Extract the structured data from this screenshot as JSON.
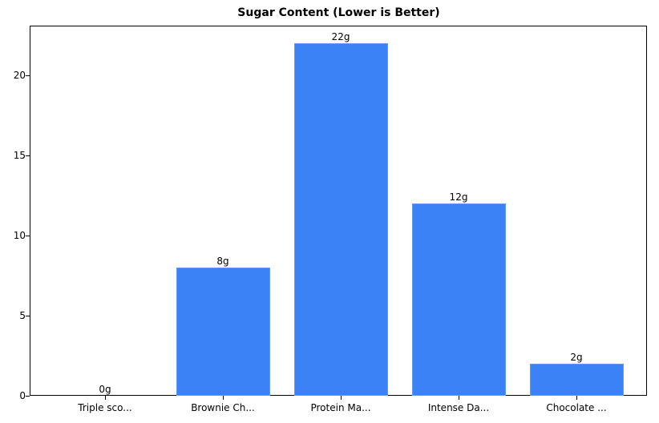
{
  "chart_data": {
    "type": "bar",
    "title": "Sugar Content (Lower is Better)",
    "xlabel": "",
    "ylabel": "",
    "categories": [
      "Triple sco...",
      "Brownie Ch...",
      "Protein Ma...",
      "Intense Da...",
      "Chocolate ..."
    ],
    "values": [
      0,
      8,
      22,
      12,
      2
    ],
    "value_labels": [
      "0g",
      "8g",
      "22g",
      "12g",
      "2g"
    ],
    "ylim": [
      0,
      23.1
    ],
    "yticks": [
      0,
      5,
      10,
      15,
      20
    ],
    "grid": false,
    "legend": null,
    "bar_color": "#3b82f6"
  }
}
